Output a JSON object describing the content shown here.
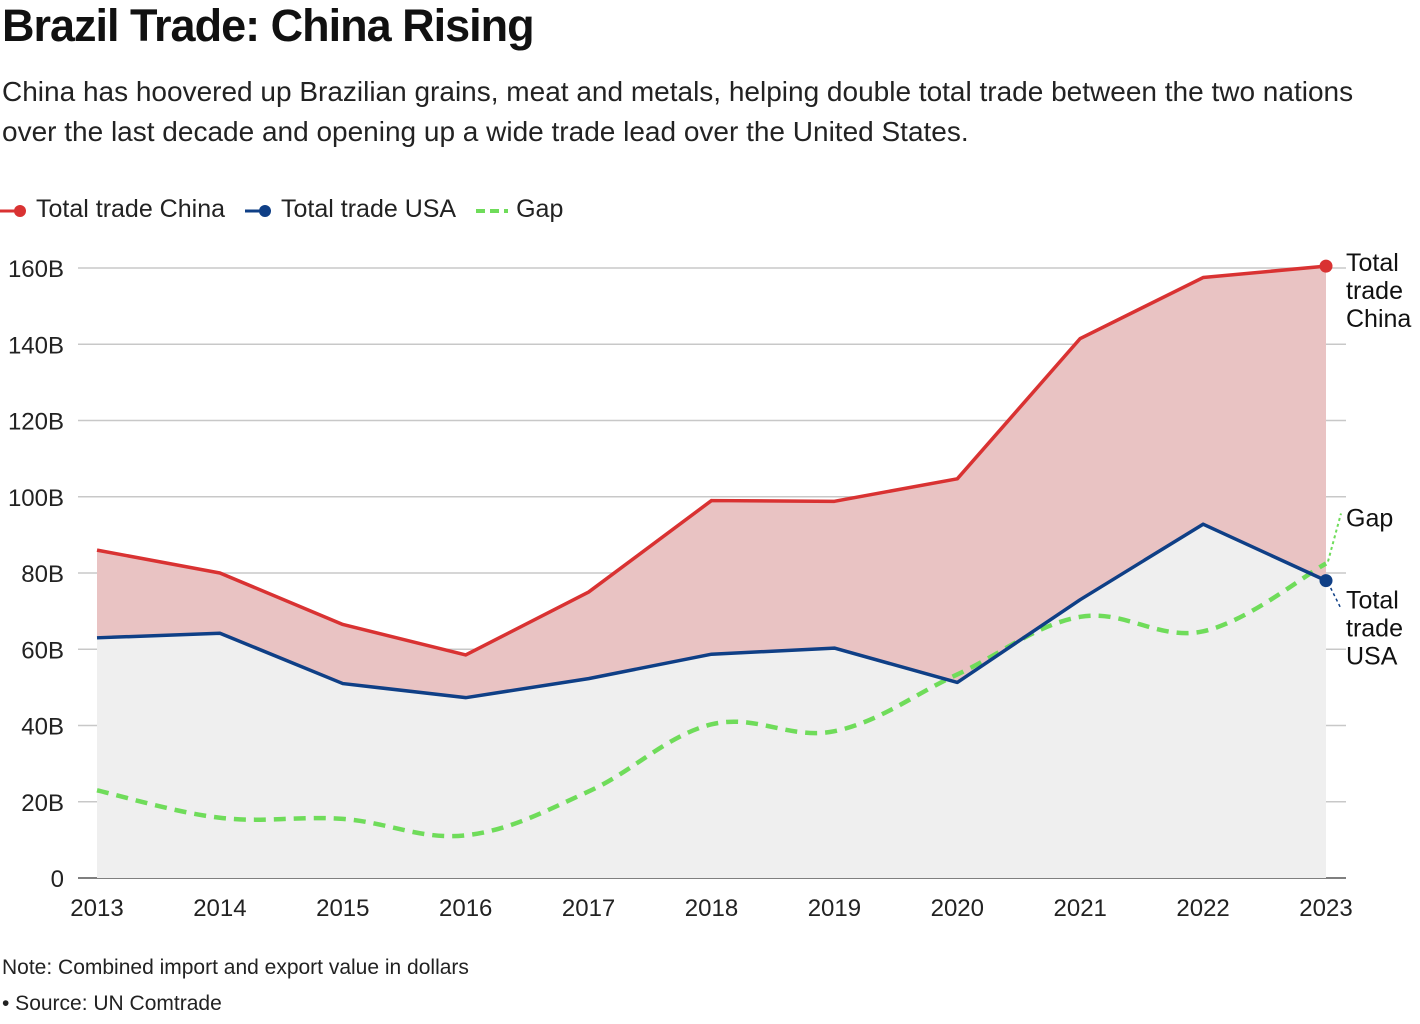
{
  "title": "Brazil Trade: China Rising",
  "subtitle": "China has hoovered up Brazilian grains, meat and metals, helping double total trade between the two nations over the last decade and opening up a wide trade lead over the United States.",
  "legend": [
    {
      "label": "Total trade China",
      "color": "#d93232"
    },
    {
      "label": "Total trade USA",
      "color": "#0f3f86"
    },
    {
      "label": "Gap",
      "color": "#6fdc5a"
    }
  ],
  "note": "Note: Combined import and export value in dollars",
  "source": "• Source: UN Comtrade",
  "colors": {
    "china": "#d93232",
    "usa": "#0f3f86",
    "gap": "#6fdc5a",
    "gap_fill": "#e9c3c3",
    "base_fill": "#efefef",
    "grid": "#c8c8c8"
  },
  "chart_data": {
    "type": "line",
    "title": "Brazil Trade: China Rising",
    "xlabel": "",
    "ylabel": "",
    "categories": [
      "2013",
      "2014",
      "2015",
      "2016",
      "2017",
      "2018",
      "2019",
      "2020",
      "2021",
      "2022",
      "2023"
    ],
    "ylim": [
      0,
      160
    ],
    "yticks": [
      0,
      20,
      40,
      60,
      80,
      100,
      120,
      140,
      160
    ],
    "ytick_labels": [
      "0",
      "20B",
      "40B",
      "60B",
      "80B",
      "100B",
      "120B",
      "140B",
      "160B"
    ],
    "series": [
      {
        "name": "Total trade China",
        "values": [
          86,
          80,
          66.5,
          58.5,
          75,
          99,
          98.8,
          104.7,
          141.5,
          157.5,
          160.5
        ]
      },
      {
        "name": "Total trade USA",
        "values": [
          63,
          64.2,
          51,
          47.3,
          52.3,
          58.7,
          60.3,
          51.3,
          73,
          92.8,
          78
        ]
      },
      {
        "name": "Gap",
        "values": [
          23,
          15.8,
          15.5,
          11.2,
          22.7,
          40.3,
          38.5,
          53.4,
          68.5,
          64.7,
          82.5
        ]
      }
    ],
    "end_labels": {
      "china": [
        "Total",
        "trade",
        "China"
      ],
      "usa": [
        "Total",
        "trade",
        "USA"
      ],
      "gap": [
        "Gap"
      ]
    },
    "grid": true,
    "legend_position": "top-left"
  }
}
